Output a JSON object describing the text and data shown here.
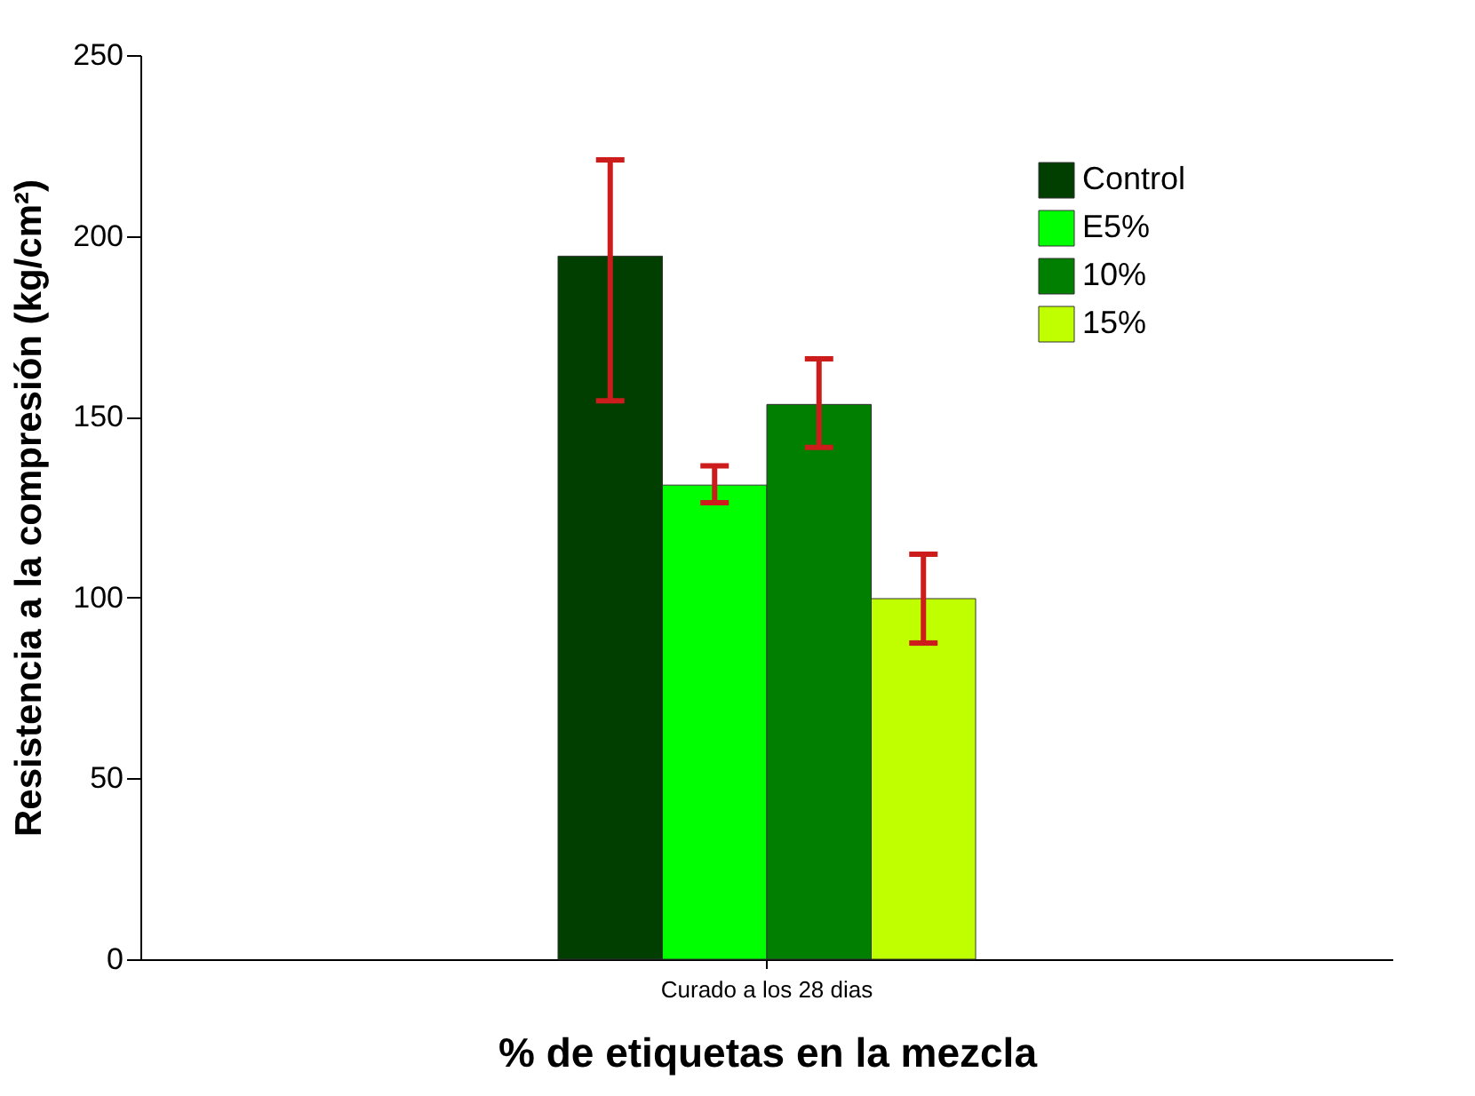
{
  "chart_data": {
    "type": "bar",
    "xlabel": "% de etiquetas en la mezcla",
    "ylabel": "Resistencia a la compresión (kg/cm²)",
    "categories": [
      "Curado a los 28 dias"
    ],
    "ylim": [
      0,
      250
    ],
    "yticks": [
      0,
      50,
      100,
      150,
      200,
      250
    ],
    "grid": false,
    "legend": "top right",
    "series": [
      {
        "name": "Control",
        "color": "#003f00",
        "values": [
          194.4
        ],
        "errors": [
          [
            154.4,
            221
          ]
        ]
      },
      {
        "name": "E5%",
        "color": "#00ff00",
        "values": [
          131.1
        ],
        "errors": [
          [
            126.2,
            136.4
          ]
        ]
      },
      {
        "name": "10%",
        "color": "#007f00",
        "values": [
          153.4
        ],
        "errors": [
          [
            141.5,
            166
          ]
        ]
      },
      {
        "name": "15%",
        "color": "#bfff00",
        "values": [
          99.7
        ],
        "errors": [
          [
            87.4,
            112
          ]
        ]
      }
    ]
  }
}
